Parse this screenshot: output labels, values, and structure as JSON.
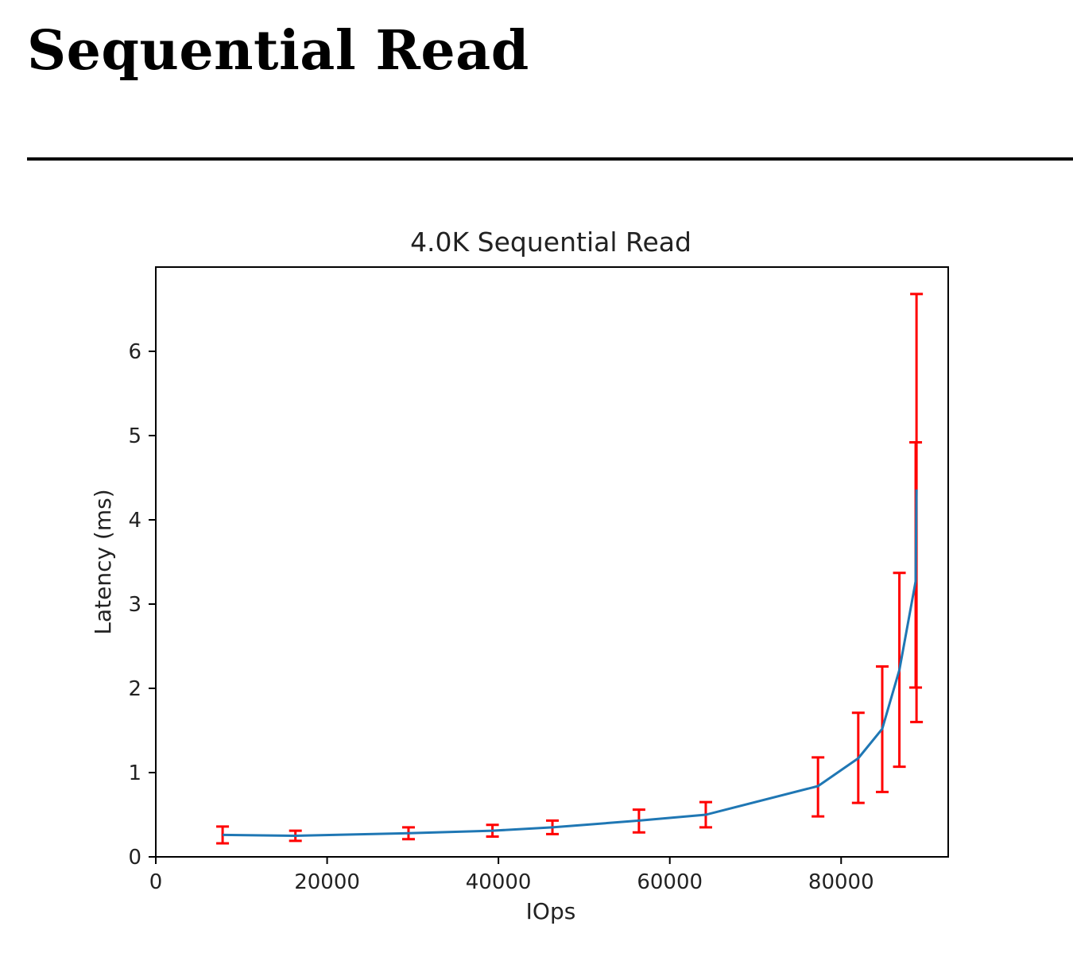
{
  "page": {
    "heading": "Sequential Read"
  },
  "chart_data": {
    "type": "line",
    "title": "4.0K  Sequential Read",
    "xlabel": "IOps",
    "ylabel": "Latency (ms)",
    "xlim": [
      0,
      92500
    ],
    "ylim": [
      0,
      7.0
    ],
    "xticks": [
      0,
      20000,
      40000,
      60000,
      80000
    ],
    "yticks": [
      0,
      1,
      2,
      3,
      4,
      5,
      6
    ],
    "grid": false,
    "legend": "none",
    "series": [
      {
        "color": "#1f77b4",
        "errorbar_color": "#ff0000",
        "points": [
          {
            "x": 7800,
            "y": 0.26,
            "lo": 0.16,
            "hi": 0.36
          },
          {
            "x": 16300,
            "y": 0.25,
            "lo": 0.19,
            "hi": 0.31
          },
          {
            "x": 29500,
            "y": 0.28,
            "lo": 0.21,
            "hi": 0.35
          },
          {
            "x": 39300,
            "y": 0.31,
            "lo": 0.24,
            "hi": 0.38
          },
          {
            "x": 46300,
            "y": 0.35,
            "lo": 0.27,
            "hi": 0.43
          },
          {
            "x": 56400,
            "y": 0.43,
            "lo": 0.29,
            "hi": 0.56
          },
          {
            "x": 64200,
            "y": 0.5,
            "lo": 0.35,
            "hi": 0.65
          },
          {
            "x": 77300,
            "y": 0.84,
            "lo": 0.48,
            "hi": 1.18
          },
          {
            "x": 82000,
            "y": 1.17,
            "lo": 0.64,
            "hi": 1.71
          },
          {
            "x": 84800,
            "y": 1.52,
            "lo": 0.77,
            "hi": 2.26
          },
          {
            "x": 86800,
            "y": 2.22,
            "lo": 1.07,
            "hi": 3.37
          },
          {
            "x": 88700,
            "y": 3.27,
            "lo": 2.01,
            "hi": 4.92
          },
          {
            "x": 88800,
            "y": 4.36,
            "lo": 1.6,
            "hi": 6.68
          }
        ]
      }
    ]
  }
}
